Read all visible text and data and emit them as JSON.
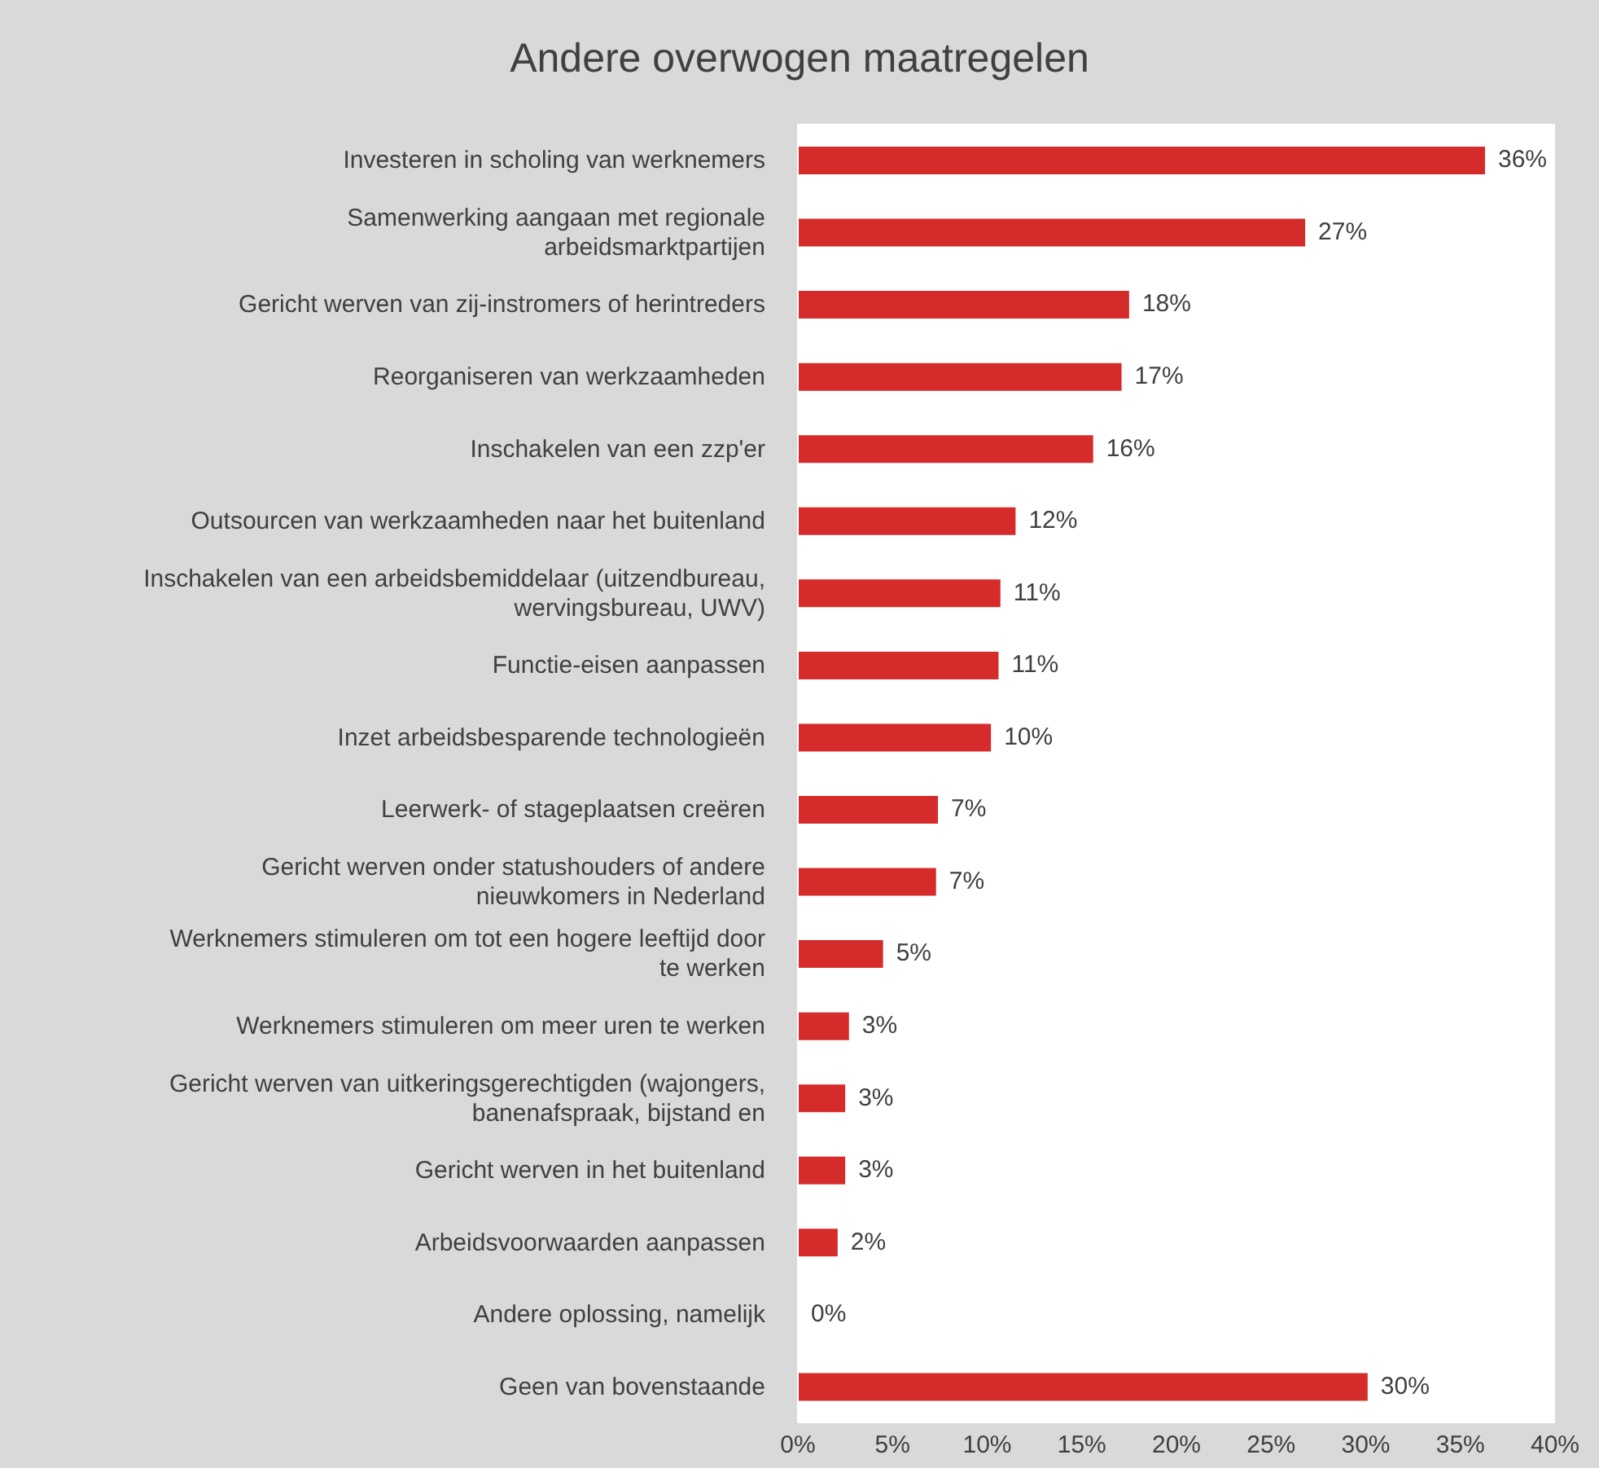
{
  "chart_data": {
    "type": "bar",
    "orientation": "horizontal",
    "title": "Andere overwogen maatregelen",
    "categories": [
      "Investeren in scholing van werknemers",
      "Samenwerking aangaan met regionale arbeidsmarktpartijen",
      "Gericht werven van zij-instromers of herintreders",
      "Reorganiseren van werkzaamheden",
      "Inschakelen van een zzp'er",
      "Outsourcen van werkzaamheden naar het buitenland",
      "Inschakelen van een arbeidsbemiddelaar (uitzendbureau, wervingsbureau, UWV)",
      "Functie-eisen aanpassen",
      "Inzet arbeidsbesparende technologieën",
      "Leerwerk- of stageplaatsen creëren",
      "Gericht werven onder statushouders of andere nieuwkomers in Nederland",
      "Werknemers stimuleren om tot een hogere leeftijd door te werken",
      "Werknemers stimuleren om meer uren te werken",
      "Gericht werven van uitkeringsgerechtigden (wajongers, banenafspraak, bijstand en",
      "Gericht werven in het buitenland",
      "Arbeidsvoorwaarden aanpassen",
      "Andere oplossing, namelijk",
      "Geen van bovenstaande"
    ],
    "values": [
      36.3,
      26.8,
      17.5,
      17.1,
      15.6,
      11.5,
      10.7,
      10.6,
      10.2,
      7.4,
      7.3,
      4.5,
      2.7,
      2.5,
      2.5,
      2.1,
      0,
      30.1
    ],
    "value_labels": [
      "36%",
      "27%",
      "18%",
      "17%",
      "16%",
      "12%",
      "11%",
      "11%",
      "10%",
      "7%",
      "7%",
      "5%",
      "3%",
      "3%",
      "3%",
      "2%",
      "0%",
      "30%"
    ],
    "color": "#d52b2b",
    "xlim": [
      0,
      40
    ],
    "xticks": [
      {
        "value": 0,
        "label": "0%"
      },
      {
        "value": 5,
        "label": "5%"
      },
      {
        "value": 10,
        "label": "10%"
      },
      {
        "value": 15,
        "label": "15%"
      },
      {
        "value": 20,
        "label": "20%"
      },
      {
        "value": 25,
        "label": "25%"
      },
      {
        "value": 30,
        "label": "30%"
      },
      {
        "value": 35,
        "label": "35%"
      },
      {
        "value": 40,
        "label": "40%"
      }
    ]
  }
}
